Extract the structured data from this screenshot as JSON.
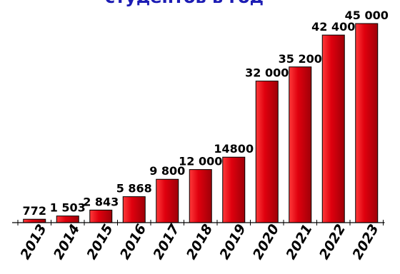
{
  "chart_data": {
    "type": "bar",
    "title": "студентов в год",
    "categories": [
      "2013",
      "2014",
      "2015",
      "2016",
      "2017",
      "2018",
      "2019",
      "2020",
      "2021",
      "2022",
      "2023"
    ],
    "values": [
      772,
      1503,
      2843,
      5868,
      9800,
      12000,
      14800,
      32000,
      35200,
      42400,
      45000
    ],
    "value_labels": [
      "772",
      "1 503",
      "2 843",
      "5 868",
      "9 800",
      "12 000",
      "14800",
      "32 000",
      "35 200",
      "42 400",
      "45 000"
    ],
    "ylim": [
      0,
      45000
    ],
    "grid": false,
    "bar_color": "#e0000e",
    "title_color": "#1c1cb4"
  }
}
